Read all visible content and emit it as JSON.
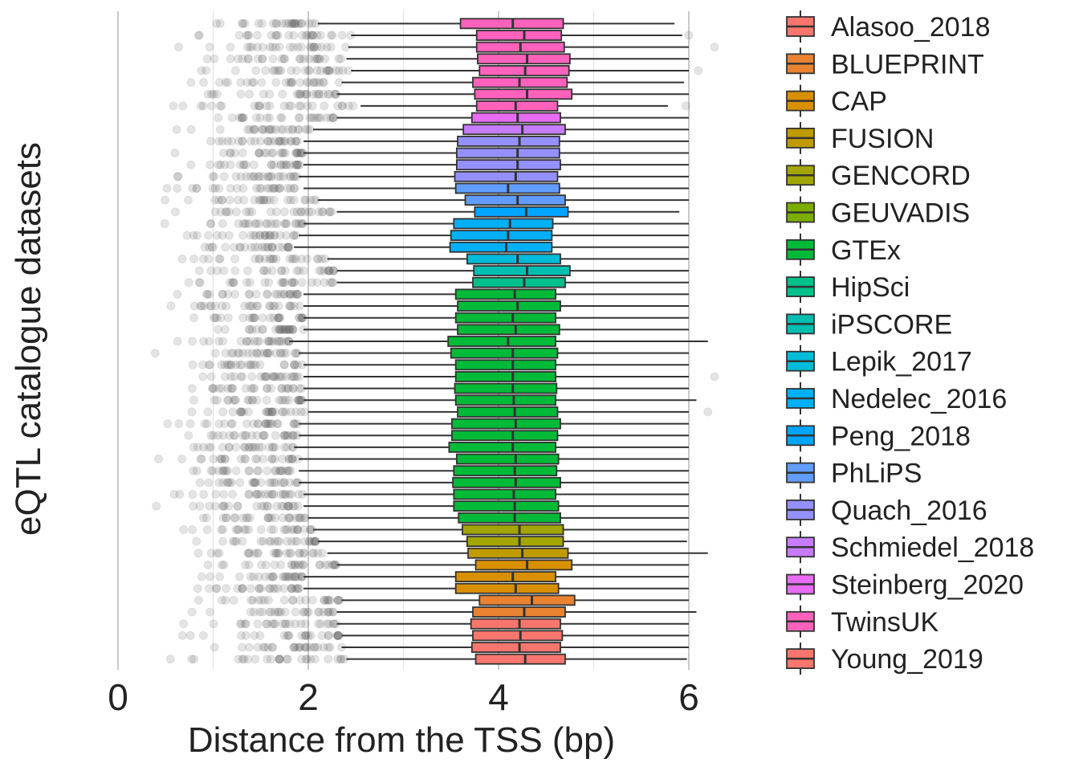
{
  "chart_data": {
    "type": "boxplot",
    "orientation": "horizontal",
    "xlabel": "Distance from the TSS (bp)",
    "ylabel": "eQTL catalogue datasets",
    "xlim": [
      -0.3,
      6.45
    ],
    "xticks": [
      0,
      2,
      4,
      6
    ],
    "xtick_labels": [
      "0",
      "2",
      "4",
      "6"
    ],
    "minor_gridlines": [
      1,
      3,
      5
    ],
    "legend_position": "right",
    "legend": [
      {
        "name": "Alasoo_2018",
        "color": "#F8766D"
      },
      {
        "name": "BLUEPRINT",
        "color": "#EA8331"
      },
      {
        "name": "CAP",
        "color": "#D89000"
      },
      {
        "name": "FUSION",
        "color": "#C09B00"
      },
      {
        "name": "GENCORD",
        "color": "#A3A500"
      },
      {
        "name": "GEUVADIS",
        "color": "#7CAE00"
      },
      {
        "name": "GTEx",
        "color": "#00BA38"
      },
      {
        "name": "HipSci",
        "color": "#00C08B"
      },
      {
        "name": "iPSCORE",
        "color": "#00BFB1"
      },
      {
        "name": "Lepik_2017",
        "color": "#00BCD8"
      },
      {
        "name": "Nedelec_2016",
        "color": "#00B0F6"
      },
      {
        "name": "Peng_2018",
        "color": "#00A5FF"
      },
      {
        "name": "PhLiPS",
        "color": "#619CFF"
      },
      {
        "name": "Quach_2016",
        "color": "#9590FF"
      },
      {
        "name": "Schmiedel_2018",
        "color": "#C77CFF"
      },
      {
        "name": "Steinberg_2020",
        "color": "#E76BF3"
      },
      {
        "name": "TwinsUK",
        "color": "#FF62BC"
      },
      {
        "name": "Young_2019",
        "color": "#F8766D"
      }
    ],
    "boxes": [
      {
        "dataset": "TwinsUK",
        "min": 2.1,
        "q1": 3.6,
        "median": 4.15,
        "q3": 4.68,
        "max": 5.85,
        "outliers_high": []
      },
      {
        "dataset": "TwinsUK",
        "min": 2.45,
        "q1": 3.77,
        "median": 4.27,
        "q3": 4.66,
        "max": 5.93,
        "outliers_high": [
          6.0
        ]
      },
      {
        "dataset": "TwinsUK",
        "min": 2.42,
        "q1": 3.77,
        "median": 4.23,
        "q3": 4.69,
        "max": 6.0,
        "outliers_high": [
          6.27
        ]
      },
      {
        "dataset": "TwinsUK",
        "min": 2.4,
        "q1": 3.78,
        "median": 4.3,
        "q3": 4.75,
        "max": 6.0,
        "outliers_high": []
      },
      {
        "dataset": "TwinsUK",
        "min": 2.45,
        "q1": 3.8,
        "median": 4.28,
        "q3": 4.74,
        "max": 6.0,
        "outliers_high": [
          6.1
        ]
      },
      {
        "dataset": "TwinsUK",
        "min": 2.35,
        "q1": 3.73,
        "median": 4.22,
        "q3": 4.72,
        "max": 5.95,
        "outliers_high": []
      },
      {
        "dataset": "TwinsUK",
        "min": 2.3,
        "q1": 3.75,
        "median": 4.3,
        "q3": 4.77,
        "max": 6.0,
        "outliers_high": []
      },
      {
        "dataset": "TwinsUK",
        "min": 2.55,
        "q1": 3.77,
        "median": 4.18,
        "q3": 4.62,
        "max": 5.78,
        "outliers_high": [
          5.97
        ]
      },
      {
        "dataset": "Steinberg_2020",
        "min": 2.3,
        "q1": 3.72,
        "median": 4.2,
        "q3": 4.65,
        "max": 6.0,
        "outliers_high": []
      },
      {
        "dataset": "Schmiedel_2018",
        "min": 2.05,
        "q1": 3.63,
        "median": 4.25,
        "q3": 4.7,
        "max": 6.0,
        "outliers_high": []
      },
      {
        "dataset": "Quach_2016",
        "min": 1.95,
        "q1": 3.57,
        "median": 4.22,
        "q3": 4.64,
        "max": 6.0,
        "outliers_high": []
      },
      {
        "dataset": "Quach_2016",
        "min": 1.95,
        "q1": 3.56,
        "median": 4.2,
        "q3": 4.64,
        "max": 6.0,
        "outliers_high": []
      },
      {
        "dataset": "Quach_2016",
        "min": 1.95,
        "q1": 3.56,
        "median": 4.2,
        "q3": 4.65,
        "max": 6.0,
        "outliers_high": []
      },
      {
        "dataset": "Quach_2016",
        "min": 1.9,
        "q1": 3.54,
        "median": 4.18,
        "q3": 4.62,
        "max": 6.0,
        "outliers_high": []
      },
      {
        "dataset": "PhLiPS",
        "min": 1.95,
        "q1": 3.55,
        "median": 4.1,
        "q3": 4.64,
        "max": 6.0,
        "outliers_high": []
      },
      {
        "dataset": "PhLiPS",
        "min": 2.1,
        "q1": 3.65,
        "median": 4.2,
        "q3": 4.7,
        "max": 6.0,
        "outliers_high": []
      },
      {
        "dataset": "Peng_2018",
        "min": 2.3,
        "q1": 3.75,
        "median": 4.29,
        "q3": 4.73,
        "max": 5.9,
        "outliers_high": []
      },
      {
        "dataset": "Nedelec_2016",
        "min": 1.95,
        "q1": 3.53,
        "median": 4.12,
        "q3": 4.57,
        "max": 6.0,
        "outliers_high": []
      },
      {
        "dataset": "Nedelec_2016",
        "min": 1.9,
        "q1": 3.5,
        "median": 4.1,
        "q3": 4.56,
        "max": 6.0,
        "outliers_high": []
      },
      {
        "dataset": "Nedelec_2016",
        "min": 1.85,
        "q1": 3.49,
        "median": 4.08,
        "q3": 4.56,
        "max": 6.0,
        "outliers_high": []
      },
      {
        "dataset": "Lepik_2017",
        "min": 2.2,
        "q1": 3.67,
        "median": 4.2,
        "q3": 4.65,
        "max": 6.0,
        "outliers_high": []
      },
      {
        "dataset": "iPSCORE",
        "min": 2.3,
        "q1": 3.74,
        "median": 4.3,
        "q3": 4.75,
        "max": 6.0,
        "outliers_high": []
      },
      {
        "dataset": "HipSci",
        "min": 2.3,
        "q1": 3.73,
        "median": 4.27,
        "q3": 4.7,
        "max": 6.0,
        "outliers_high": []
      },
      {
        "dataset": "GTEx",
        "min": 1.95,
        "q1": 3.55,
        "median": 4.17,
        "q3": 4.6,
        "max": 6.0,
        "outliers_high": []
      },
      {
        "dataset": "GTEx",
        "min": 1.95,
        "q1": 3.57,
        "median": 4.2,
        "q3": 4.65,
        "max": 6.0,
        "outliers_high": []
      },
      {
        "dataset": "GTEx",
        "min": 1.95,
        "q1": 3.55,
        "median": 4.15,
        "q3": 4.6,
        "max": 6.0,
        "outliers_high": []
      },
      {
        "dataset": "GTEx",
        "min": 1.95,
        "q1": 3.57,
        "median": 4.18,
        "q3": 4.64,
        "max": 6.0,
        "outliers_high": []
      },
      {
        "dataset": "GTEx",
        "min": 1.8,
        "q1": 3.47,
        "median": 4.1,
        "q3": 4.6,
        "max": 6.2,
        "outliers_high": []
      },
      {
        "dataset": "GTEx",
        "min": 1.9,
        "q1": 3.5,
        "median": 4.15,
        "q3": 4.62,
        "max": 6.0,
        "outliers_high": []
      },
      {
        "dataset": "GTEx",
        "min": 1.95,
        "q1": 3.55,
        "median": 4.15,
        "q3": 4.6,
        "max": 6.0,
        "outliers_high": []
      },
      {
        "dataset": "GTEx",
        "min": 1.95,
        "q1": 3.55,
        "median": 4.15,
        "q3": 4.6,
        "max": 6.0,
        "outliers_high": [
          6.27
        ]
      },
      {
        "dataset": "GTEx",
        "min": 1.95,
        "q1": 3.54,
        "median": 4.15,
        "q3": 4.61,
        "max": 6.0,
        "outliers_high": []
      },
      {
        "dataset": "GTEx",
        "min": 1.95,
        "q1": 3.55,
        "median": 4.16,
        "q3": 4.6,
        "max": 6.08,
        "outliers_high": []
      },
      {
        "dataset": "GTEx",
        "min": 2.0,
        "q1": 3.57,
        "median": 4.17,
        "q3": 4.62,
        "max": 6.0,
        "outliers_high": [
          6.2
        ]
      },
      {
        "dataset": "GTEx",
        "min": 1.9,
        "q1": 3.51,
        "median": 4.18,
        "q3": 4.65,
        "max": 6.0,
        "outliers_high": []
      },
      {
        "dataset": "GTEx",
        "min": 1.9,
        "q1": 3.51,
        "median": 4.15,
        "q3": 4.62,
        "max": 6.0,
        "outliers_high": []
      },
      {
        "dataset": "GTEx",
        "min": 1.85,
        "q1": 3.48,
        "median": 4.15,
        "q3": 4.6,
        "max": 6.0,
        "outliers_high": []
      },
      {
        "dataset": "GTEx",
        "min": 1.9,
        "q1": 3.56,
        "median": 4.18,
        "q3": 4.63,
        "max": 6.0,
        "outliers_high": []
      },
      {
        "dataset": "GTEx",
        "min": 1.9,
        "q1": 3.53,
        "median": 4.17,
        "q3": 4.61,
        "max": 6.0,
        "outliers_high": []
      },
      {
        "dataset": "GTEx",
        "min": 1.9,
        "q1": 3.52,
        "median": 4.18,
        "q3": 4.65,
        "max": 6.0,
        "outliers_high": []
      },
      {
        "dataset": "GTEx",
        "min": 1.95,
        "q1": 3.53,
        "median": 4.16,
        "q3": 4.6,
        "max": 6.0,
        "outliers_high": []
      },
      {
        "dataset": "GTEx",
        "min": 1.95,
        "q1": 3.53,
        "median": 4.17,
        "q3": 4.63,
        "max": 6.0,
        "outliers_high": []
      },
      {
        "dataset": "GTEx",
        "min": 2.0,
        "q1": 3.58,
        "median": 4.17,
        "q3": 4.65,
        "max": 6.0,
        "outliers_high": []
      },
      {
        "dataset": "GENCORD",
        "min": 2.05,
        "q1": 3.62,
        "median": 4.22,
        "q3": 4.68,
        "max": 6.0,
        "outliers_high": []
      },
      {
        "dataset": "GENCORD",
        "min": 2.1,
        "q1": 3.67,
        "median": 4.22,
        "q3": 4.68,
        "max": 5.98,
        "outliers_high": []
      },
      {
        "dataset": "FUSION",
        "min": 2.2,
        "q1": 3.68,
        "median": 4.25,
        "q3": 4.73,
        "max": 6.2,
        "outliers_high": []
      },
      {
        "dataset": "CAP",
        "min": 2.3,
        "q1": 3.76,
        "median": 4.3,
        "q3": 4.77,
        "max": 6.0,
        "outliers_high": []
      },
      {
        "dataset": "CAP",
        "min": 1.95,
        "q1": 3.55,
        "median": 4.15,
        "q3": 4.6,
        "max": 6.0,
        "outliers_high": []
      },
      {
        "dataset": "CAP",
        "min": 1.95,
        "q1": 3.55,
        "median": 4.18,
        "q3": 4.63,
        "max": 6.0,
        "outliers_high": []
      },
      {
        "dataset": "BLUEPRINT",
        "min": 2.35,
        "q1": 3.8,
        "median": 4.35,
        "q3": 4.8,
        "max": 6.0,
        "outliers_high": []
      },
      {
        "dataset": "BLUEPRINT",
        "min": 2.3,
        "q1": 3.73,
        "median": 4.27,
        "q3": 4.7,
        "max": 6.08,
        "outliers_high": []
      },
      {
        "dataset": "Young_2019",
        "min": 2.3,
        "q1": 3.71,
        "median": 4.22,
        "q3": 4.65,
        "max": 6.0,
        "outliers_high": []
      },
      {
        "dataset": "Young_2019",
        "min": 2.35,
        "q1": 3.73,
        "median": 4.23,
        "q3": 4.67,
        "max": 6.0,
        "outliers_high": []
      },
      {
        "dataset": "Young_2019",
        "min": 2.35,
        "q1": 3.72,
        "median": 4.22,
        "q3": 4.65,
        "max": 6.0,
        "outliers_high": []
      },
      {
        "dataset": "Alasoo_2018",
        "min": 2.4,
        "q1": 3.76,
        "median": 4.28,
        "q3": 4.7,
        "max": 5.98,
        "outliers_high": []
      }
    ]
  }
}
